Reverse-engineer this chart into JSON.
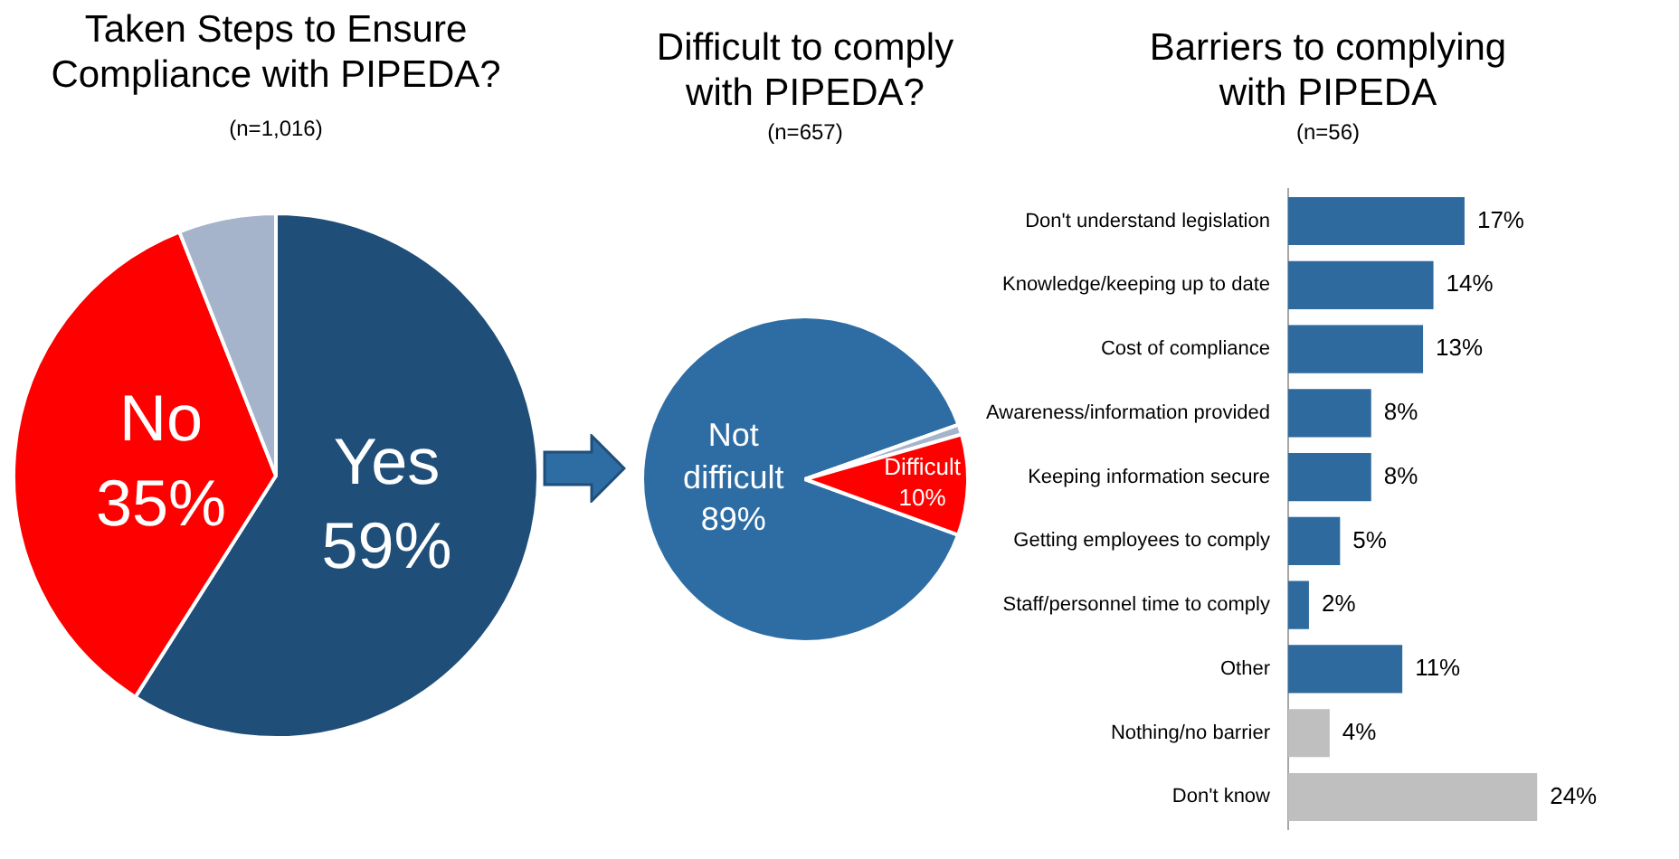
{
  "chart_data": [
    {
      "type": "pie",
      "title": "Taken Steps to Ensure Compliance with PIPEDA?",
      "subtitle": "(n=1,016)",
      "categories": [
        "Yes",
        "No",
        null
      ],
      "values": [
        59,
        35,
        6
      ],
      "colors": [
        "#1f4e79",
        "#ff0000",
        "#a5b4ca"
      ],
      "value_labels": [
        "59%",
        "35%",
        null
      ],
      "legend": false
    },
    {
      "type": "pie",
      "title": "Difficult to comply with PIPEDA?",
      "subtitle": "(n=657)",
      "categories": [
        "Not difficult",
        null,
        "Difficult"
      ],
      "values": [
        89,
        1,
        10
      ],
      "colors": [
        "#2e6da4",
        "#a5b4ca",
        "#ff0000"
      ],
      "value_labels": [
        "89%",
        null,
        "10%"
      ],
      "legend": false
    },
    {
      "type": "bar",
      "orientation": "horizontal",
      "title": "Barriers to complying with PIPEDA",
      "subtitle": "(n=56)",
      "categories": [
        "Don't understand legislation",
        "Knowledge/keeping up to date",
        "Cost of compliance",
        "Awareness/information provided",
        "Keeping information secure",
        "Getting employees to comply",
        "Staff/personnel time to comply",
        "Other",
        "Nothing/no barrier",
        "Don't know"
      ],
      "values": [
        17,
        14,
        13,
        8,
        8,
        5,
        2,
        11,
        4,
        24
      ],
      "colors": [
        "#2e6a9e",
        "#2e6a9e",
        "#2e6a9e",
        "#2e6a9e",
        "#2e6a9e",
        "#2e6a9e",
        "#2e6a9e",
        "#2e6a9e",
        "#bfbfbf",
        "#bfbfbf"
      ],
      "value_labels": [
        "17%",
        "14%",
        "13%",
        "8%",
        "8%",
        "5%",
        "2%",
        "11%",
        "4%",
        "24%"
      ],
      "legend": false,
      "tick_labels": "y"
    }
  ]
}
